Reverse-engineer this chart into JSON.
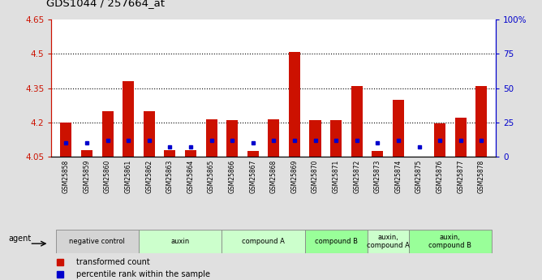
{
  "title": "GDS1044 / 257664_at",
  "samples": [
    "GSM25858",
    "GSM25859",
    "GSM25860",
    "GSM25861",
    "GSM25862",
    "GSM25863",
    "GSM25864",
    "GSM25865",
    "GSM25866",
    "GSM25867",
    "GSM25868",
    "GSM25869",
    "GSM25870",
    "GSM25871",
    "GSM25872",
    "GSM25873",
    "GSM25874",
    "GSM25875",
    "GSM25876",
    "GSM25877",
    "GSM25878"
  ],
  "red_values": [
    4.2,
    4.08,
    4.25,
    4.38,
    4.25,
    4.08,
    4.08,
    4.215,
    4.21,
    4.075,
    4.215,
    4.51,
    4.21,
    4.21,
    4.36,
    4.075,
    4.3,
    4.052,
    4.195,
    4.22,
    4.36
  ],
  "blue_values_pct": [
    10,
    10,
    12,
    12,
    12,
    7,
    7,
    12,
    12,
    10,
    12,
    12,
    12,
    12,
    12,
    10,
    12,
    7,
    12,
    12,
    12
  ],
  "ymin": 4.05,
  "ymax": 4.65,
  "y2min": 0,
  "y2max": 100,
  "yticks": [
    4.05,
    4.2,
    4.35,
    4.5,
    4.65
  ],
  "y2ticks": [
    0,
    25,
    50,
    75,
    100
  ],
  "y2ticklabels": [
    "0",
    "25",
    "50",
    "75",
    "100%"
  ],
  "groups": [
    {
      "label": "negative control",
      "start": 0,
      "end": 3,
      "color": "#d4d4d4"
    },
    {
      "label": "auxin",
      "start": 4,
      "end": 7,
      "color": "#ccffcc"
    },
    {
      "label": "compound A",
      "start": 8,
      "end": 11,
      "color": "#ccffcc"
    },
    {
      "label": "compound B",
      "start": 12,
      "end": 14,
      "color": "#99ff99"
    },
    {
      "label": "auxin,\ncompound A",
      "start": 15,
      "end": 16,
      "color": "#ccffcc"
    },
    {
      "label": "auxin,\ncompound B",
      "start": 17,
      "end": 20,
      "color": "#99ff99"
    }
  ],
  "bar_color": "#cc1100",
  "blue_color": "#0000cc",
  "bg_color": "#e0e0e0",
  "plot_bg": "#ffffff",
  "legend_red": "transformed count",
  "legend_blue": "percentile rank within the sample",
  "agent_label": "agent",
  "grid_lines": [
    4.2,
    4.35,
    4.5
  ]
}
